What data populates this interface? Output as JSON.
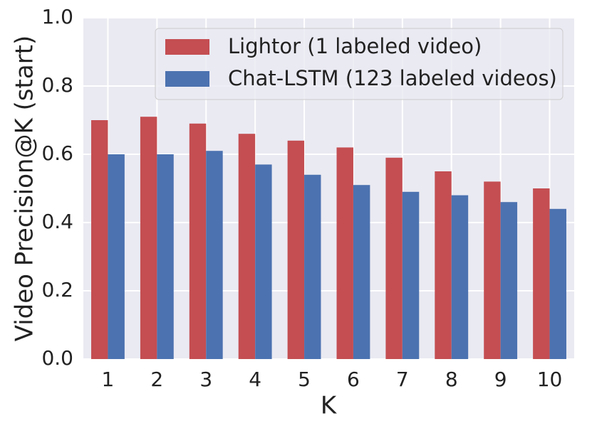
{
  "chart_data": {
    "type": "bar",
    "xlabel": "K",
    "ylabel": "Video Precision@K (start)",
    "categories": [
      "1",
      "2",
      "3",
      "4",
      "5",
      "6",
      "7",
      "8",
      "9",
      "10"
    ],
    "series": [
      {
        "name": "Lightor (1 labeled video)",
        "color": "#c44e52",
        "values": [
          0.7,
          0.71,
          0.69,
          0.66,
          0.64,
          0.62,
          0.59,
          0.55,
          0.52,
          0.5
        ]
      },
      {
        "name": "Chat-LSTM (123 labeled videos)",
        "color": "#4c72b0",
        "values": [
          0.6,
          0.6,
          0.61,
          0.57,
          0.54,
          0.51,
          0.49,
          0.48,
          0.46,
          0.44
        ]
      }
    ],
    "ylim": [
      0,
      1
    ],
    "yticks": [
      {
        "value": 0,
        "label": "0.0"
      },
      {
        "value": 0.2,
        "label": "0.2"
      },
      {
        "value": 0.4,
        "label": "0.4"
      },
      {
        "value": 0.6,
        "label": "0.6"
      },
      {
        "value": 0.8,
        "label": "0.8"
      },
      {
        "value": 1,
        "label": "1.0"
      }
    ],
    "grid": true,
    "legend": "upper right"
  }
}
